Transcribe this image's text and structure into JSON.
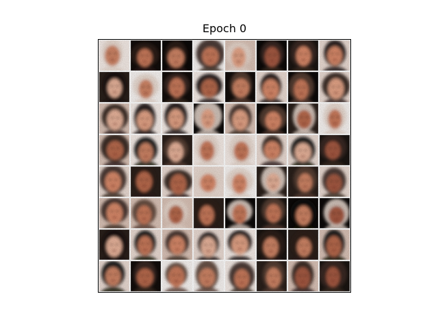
{
  "figure": {
    "title": "Epoch 0",
    "grid": {
      "rows": 8,
      "cols": 8
    },
    "samples_shown": 64
  }
}
